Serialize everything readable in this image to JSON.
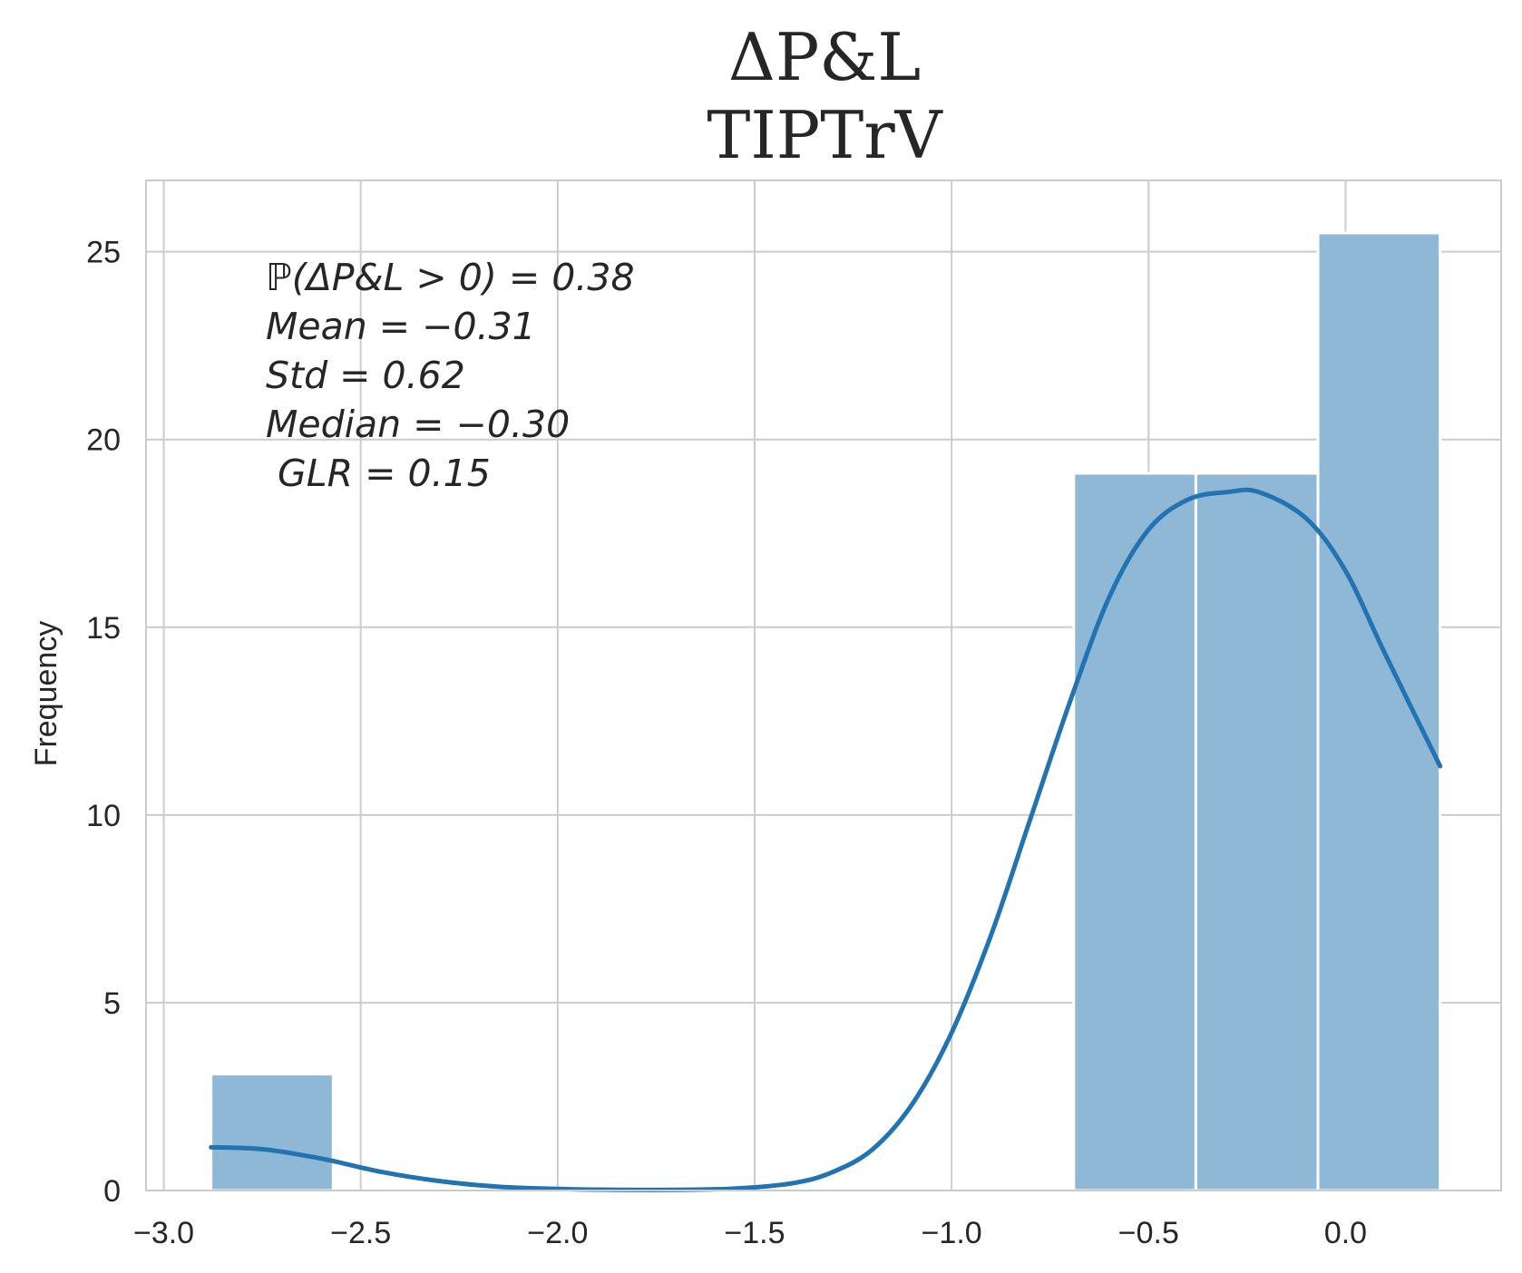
{
  "chart_data": {
    "type": "bar",
    "title": "ΔP&L",
    "subtitle": "TIPTrV",
    "xlabel": "",
    "ylabel": "Frequency",
    "xlim": [
      -3.045,
      0.395
    ],
    "ylim": [
      0,
      26.9
    ],
    "xticks": [
      -3.0,
      -2.5,
      -2.0,
      -1.5,
      -1.0,
      -0.5,
      0.0
    ],
    "xtick_labels": [
      "−3.0",
      "−2.5",
      "−2.0",
      "−1.5",
      "−1.0",
      "−0.5",
      "0.0"
    ],
    "yticks": [
      0,
      5,
      10,
      15,
      20,
      25
    ],
    "ytick_labels": [
      "0",
      "5",
      "10",
      "15",
      "20",
      "25"
    ],
    "grid": true,
    "bins": [
      {
        "x0": -2.88,
        "x1": -2.57,
        "value": 3.1
      },
      {
        "x0": -0.69,
        "x1": -0.38,
        "value": 19.1
      },
      {
        "x0": -0.38,
        "x1": -0.07,
        "value": 19.1
      },
      {
        "x0": -0.07,
        "x1": 0.24,
        "value": 25.5
      }
    ],
    "kde": {
      "x": [
        -2.88,
        -2.75,
        -2.6,
        -2.45,
        -2.3,
        -2.15,
        -2.0,
        -1.85,
        -1.7,
        -1.55,
        -1.4,
        -1.3,
        -1.2,
        -1.1,
        -1.0,
        -0.9,
        -0.8,
        -0.7,
        -0.6,
        -0.5,
        -0.4,
        -0.3,
        -0.22,
        -0.1,
        0.0,
        0.1,
        0.24
      ],
      "y": [
        1.15,
        1.1,
        0.85,
        0.5,
        0.25,
        0.1,
        0.04,
        0.02,
        0.02,
        0.05,
        0.2,
        0.5,
        1.1,
        2.3,
        4.2,
        6.8,
        9.9,
        13.0,
        15.8,
        17.6,
        18.4,
        18.6,
        18.6,
        17.9,
        16.5,
        14.3,
        11.3
      ]
    },
    "annotations": [
      "ℙ(ΔP&L > 0) = 0.38",
      "Mean = −0.31",
      "Std = 0.62",
      "Median = −0.30",
      " GLR = 0.15"
    ],
    "colors": {
      "bar": "#8fb8d7",
      "bar_edge": "#ffffff",
      "kde": "#2173b1",
      "grid": "#cccccc",
      "spine": "#cccccc",
      "text": "#262626"
    }
  }
}
